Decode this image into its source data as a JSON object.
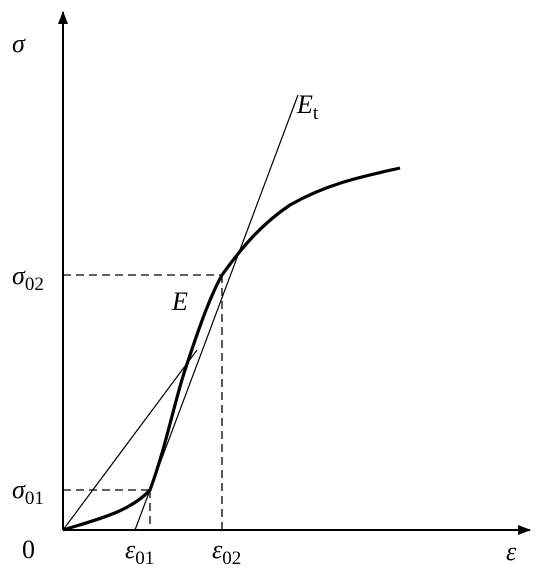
{
  "axes": {
    "y_label": "σ",
    "x_label": "ε",
    "origin": "0"
  },
  "labels": {
    "sigma_02": {
      "symbol": "σ",
      "subscript": "02"
    },
    "sigma_01": {
      "symbol": "σ",
      "subscript": "01"
    },
    "epsilon_01": {
      "symbol": "ε",
      "subscript": "01"
    },
    "epsilon_02": {
      "symbol": "ε",
      "subscript": "02"
    },
    "secant": {
      "symbol": "E"
    },
    "tangent": {
      "symbol": "E",
      "subscript": "t"
    }
  }
}
